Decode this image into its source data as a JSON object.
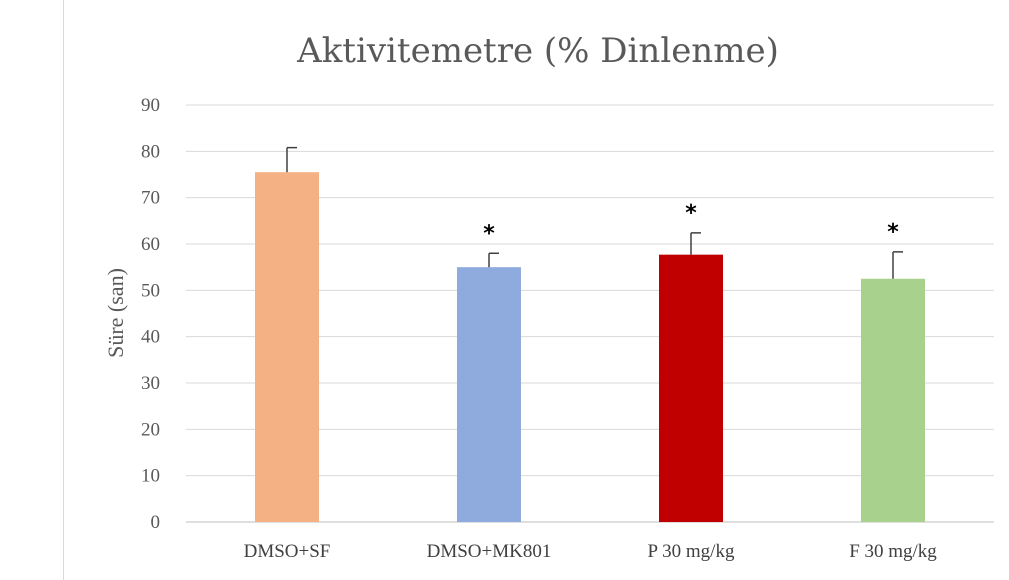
{
  "chart_data": {
    "type": "bar",
    "title": "Aktivitemetre (% Dinlenme)",
    "xlabel": "",
    "ylabel": "Süre (san)",
    "categories": [
      "DMSO+SF",
      "DMSO+MK801",
      "P 30 mg/kg",
      "F 30 mg/kg"
    ],
    "values": [
      75.5,
      55.0,
      57.7,
      52.5
    ],
    "errors": [
      5.3,
      3.0,
      4.7,
      5.8
    ],
    "significance": [
      "",
      "*",
      "*",
      "*"
    ],
    "colors": [
      "#f4b183",
      "#8faadc",
      "#c00000",
      "#a9d18e"
    ],
    "ylim": [
      0,
      90
    ],
    "yticks": [
      0,
      10,
      20,
      30,
      40,
      50,
      60,
      70,
      80,
      90
    ],
    "grid": true,
    "legend": "none"
  }
}
